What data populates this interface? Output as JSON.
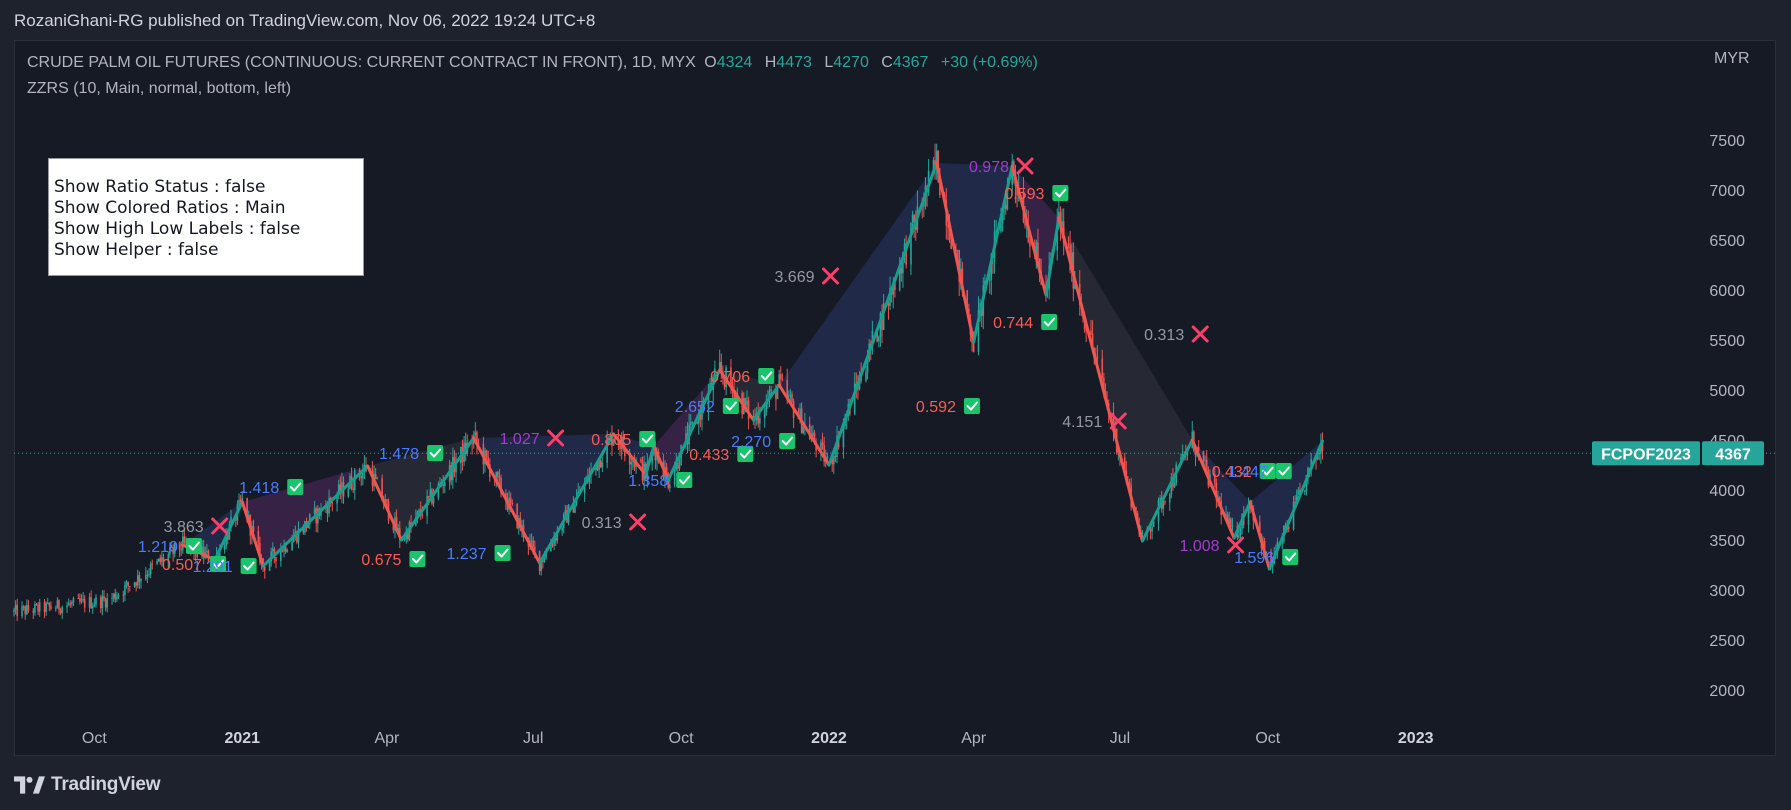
{
  "publisher": "RozaniGhani-RG published on TradingView.com, Nov 06, 2022 19:24 UTC+8",
  "symbol": {
    "description": "CRUDE PALM OIL FUTURES (CONTINUOUS: CURRENT CONTRACT IN FRONT), 1D, MYX",
    "open_label": "O",
    "open": "4324",
    "high_label": "H",
    "high": "4473",
    "low_label": "L",
    "low": "4270",
    "close_label": "C",
    "close": "4367",
    "change": "+30 (+0.69%)",
    "currency": "MYR",
    "ticker_tag": "FCPOF2023",
    "last_price": "4367"
  },
  "indicator": {
    "title": "ZZRS (10, Main, normal, bottom, left)"
  },
  "settings_box": {
    "line1": "Show Ratio Status : false",
    "line2": "Show Colored Ratios : Main",
    "line3": "Show High Low Labels : false",
    "line4": "Show Helper : false"
  },
  "footer": {
    "brand": "TradingView"
  },
  "colors": {
    "up": "#26a69a",
    "down": "#ef5350",
    "zigzag_up": "#13a08e",
    "zigzag_down": "#f0554f",
    "blue_label": "#4a7cff",
    "red_label": "#ff5a52",
    "purple_label": "#a23ccf",
    "gray_label": "#9598a1",
    "check": "#19c46a",
    "cross": "#ff3d6b",
    "fill_blue": "#2d3b73",
    "fill_purple": "#5a2c6b",
    "fill_gray": "#3a3c44"
  },
  "chart_data": {
    "type": "line",
    "price_axis": {
      "ticks": [
        "7500",
        "7000",
        "6500",
        "6000",
        "5500",
        "5000",
        "4500",
        "4000",
        "3500",
        "3000",
        "2500",
        "2000"
      ],
      "range": [
        1700,
        7900
      ]
    },
    "time_axis": {
      "ticks": [
        "Oct",
        "2021",
        "Apr",
        "Jul",
        "Oct",
        "2022",
        "Apr",
        "Jul",
        "Oct",
        "2023"
      ],
      "bold": [
        false,
        true,
        false,
        false,
        false,
        true,
        false,
        false,
        false,
        true
      ],
      "range": [
        "2020-08-12",
        "2023-02-10"
      ]
    },
    "zigzag": [
      {
        "date": "2020-11-25",
        "price": 3450
      },
      {
        "date": "2020-12-15",
        "price": 3300
      },
      {
        "date": "2021-01-01",
        "price": 3880
      },
      {
        "date": "2021-01-14",
        "price": 3240
      },
      {
        "date": "2021-03-20",
        "price": 4240
      },
      {
        "date": "2021-04-10",
        "price": 3500
      },
      {
        "date": "2021-05-25",
        "price": 4520
      },
      {
        "date": "2021-07-05",
        "price": 3270
      },
      {
        "date": "2021-08-20",
        "price": 4560
      },
      {
        "date": "2021-09-09",
        "price": 4150
      },
      {
        "date": "2021-09-14",
        "price": 4440
      },
      {
        "date": "2021-09-23",
        "price": 4100
      },
      {
        "date": "2021-10-25",
        "price": 5200
      },
      {
        "date": "2021-11-15",
        "price": 4700
      },
      {
        "date": "2021-12-01",
        "price": 5050
      },
      {
        "date": "2022-01-01",
        "price": 4250
      },
      {
        "date": "2022-03-09",
        "price": 7270
      },
      {
        "date": "2022-04-01",
        "price": 5480
      },
      {
        "date": "2022-04-25",
        "price": 7240
      },
      {
        "date": "2022-05-16",
        "price": 5950
      },
      {
        "date": "2022-05-24",
        "price": 6720
      },
      {
        "date": "2022-07-15",
        "price": 3490
      },
      {
        "date": "2022-08-15",
        "price": 4500
      },
      {
        "date": "2022-09-10",
        "price": 3520
      },
      {
        "date": "2022-09-20",
        "price": 3880
      },
      {
        "date": "2022-10-02",
        "price": 3210
      },
      {
        "date": "2022-11-04",
        "price": 4490
      }
    ],
    "ratio_labels": [
      {
        "text": "3.863",
        "date": "2020-12-08",
        "price": 3640,
        "color": "gray",
        "mark": "cross"
      },
      {
        "text": "1.210",
        "date": "2020-11-22",
        "price": 3440,
        "color": "blue",
        "mark": "check"
      },
      {
        "text": "0.507",
        "date": "2020-12-07",
        "price": 3260,
        "color": "red",
        "mark": "check"
      },
      {
        "text": "1.291",
        "date": "2020-12-26",
        "price": 3240,
        "color": "blue",
        "mark": "check"
      },
      {
        "text": "1.418",
        "date": "2021-01-24",
        "price": 4030,
        "color": "blue",
        "mark": "check"
      },
      {
        "text": "1.478",
        "date": "2021-04-21",
        "price": 4370,
        "color": "blue",
        "mark": "check"
      },
      {
        "text": "0.675",
        "date": "2021-04-10",
        "price": 3310,
        "color": "red",
        "mark": "check"
      },
      {
        "text": "1.237",
        "date": "2021-06-02",
        "price": 3370,
        "color": "blue",
        "mark": "check"
      },
      {
        "text": "1.027",
        "date": "2021-07-05",
        "price": 4520,
        "color": "purple",
        "mark": "cross"
      },
      {
        "text": "0.313",
        "date": "2021-08-25",
        "price": 3680,
        "color": "gray",
        "mark": "cross"
      },
      {
        "text": "0.805",
        "date": "2021-08-31",
        "price": 4510,
        "color": "red",
        "mark": "check"
      },
      {
        "text": "1.358",
        "date": "2021-09-23",
        "price": 4100,
        "color": "blue",
        "mark": "check"
      },
      {
        "text": "2.652",
        "date": "2021-10-22",
        "price": 4840,
        "color": "blue",
        "mark": "check"
      },
      {
        "text": "0.706",
        "date": "2021-11-13",
        "price": 5140,
        "color": "red",
        "mark": "check"
      },
      {
        "text": "0.433",
        "date": "2021-10-31",
        "price": 4360,
        "color": "red",
        "mark": "check"
      },
      {
        "text": "2.270",
        "date": "2021-11-26",
        "price": 4490,
        "color": "blue",
        "mark": "check"
      },
      {
        "text": "3.669",
        "date": "2021-12-23",
        "price": 6140,
        "color": "gray",
        "mark": "cross"
      },
      {
        "text": "0.978",
        "date": "2022-04-23",
        "price": 7240,
        "color": "purple",
        "mark": "cross"
      },
      {
        "text": "0.593",
        "date": "2022-05-15",
        "price": 6970,
        "color": "red",
        "mark": "check"
      },
      {
        "text": "0.744",
        "date": "2022-05-08",
        "price": 5680,
        "color": "red",
        "mark": "check"
      },
      {
        "text": "0.592",
        "date": "2022-03-21",
        "price": 4840,
        "color": "red",
        "mark": "check"
      },
      {
        "text": "0.313",
        "date": "2022-08-10",
        "price": 5560,
        "color": "gray",
        "mark": "cross"
      },
      {
        "text": "4.151",
        "date": "2022-06-20",
        "price": 4690,
        "color": "gray",
        "mark": "cross"
      },
      {
        "text": "1.008",
        "date": "2022-09-01",
        "price": 3450,
        "color": "purple",
        "mark": "cross"
      },
      {
        "text": "0.432",
        "date": "2022-09-21",
        "price": 4190,
        "color": "red",
        "mark": "check"
      },
      {
        "text": "1.447",
        "date": "2022-10-01",
        "price": 4190,
        "color": "blue",
        "mark": "check"
      },
      {
        "text": "1.596",
        "date": "2022-10-05",
        "price": 3330,
        "color": "blue",
        "mark": "check"
      }
    ]
  }
}
